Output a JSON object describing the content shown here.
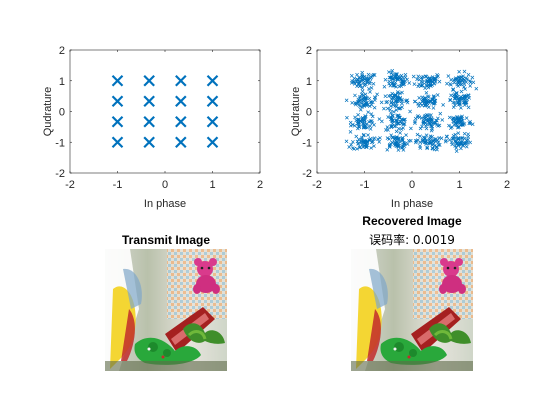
{
  "colors": {
    "marker": "#0072BD",
    "axis": "#262626",
    "background": "#ffffff"
  },
  "chart_data": [
    {
      "type": "scatter",
      "panel": "transmit-constellation",
      "xlabel": "In phase",
      "ylabel": "Qudrature",
      "xlim": [
        -2,
        2
      ],
      "ylim": [
        -2,
        2
      ],
      "xticks": [
        "-2",
        "-1",
        "0",
        "1",
        "2"
      ],
      "yticks": [
        "-2",
        "-1",
        "0",
        "1",
        "2"
      ],
      "marker": "x",
      "grid": false,
      "points": [
        [
          -1,
          1
        ],
        [
          -0.333,
          1
        ],
        [
          0.333,
          1
        ],
        [
          1,
          1
        ],
        [
          -1,
          0.333
        ],
        [
          -0.333,
          0.333
        ],
        [
          0.333,
          0.333
        ],
        [
          1,
          0.333
        ],
        [
          -1,
          -0.333
        ],
        [
          -0.333,
          -0.333
        ],
        [
          0.333,
          -0.333
        ],
        [
          1,
          -0.333
        ],
        [
          -1,
          -1
        ],
        [
          -0.333,
          -1
        ],
        [
          0.333,
          -1
        ],
        [
          1,
          -1
        ]
      ]
    },
    {
      "type": "scatter",
      "panel": "received-constellation",
      "xlabel": "In phase",
      "ylabel": "Qudrature",
      "xlim": [
        -2,
        2
      ],
      "ylim": [
        -2,
        2
      ],
      "xticks": [
        "-2",
        "-1",
        "0",
        "1",
        "2"
      ],
      "yticks": [
        "-2",
        "-1",
        "0",
        "1",
        "2"
      ],
      "marker": "x",
      "grid": false,
      "cluster_centers": [
        [
          -1,
          1
        ],
        [
          -0.333,
          1
        ],
        [
          0.333,
          1
        ],
        [
          1,
          1
        ],
        [
          -1,
          0.333
        ],
        [
          -0.333,
          0.333
        ],
        [
          0.333,
          0.333
        ],
        [
          1,
          0.333
        ],
        [
          -1,
          -0.333
        ],
        [
          -0.333,
          -0.333
        ],
        [
          0.333,
          -0.333
        ],
        [
          1,
          -0.333
        ],
        [
          -1,
          -1
        ],
        [
          -0.333,
          -1
        ],
        [
          0.333,
          -1
        ],
        [
          1,
          -1
        ]
      ],
      "noise_spread": 0.13,
      "x_range_observed": [
        -1.45,
        1.4
      ],
      "y_range_observed": [
        -1.45,
        1.45
      ]
    }
  ],
  "images": {
    "transmit": {
      "title": "Transmit Image"
    },
    "recovered": {
      "title": "Recovered Image",
      "subtitle": "误码率: 0.0019"
    }
  }
}
